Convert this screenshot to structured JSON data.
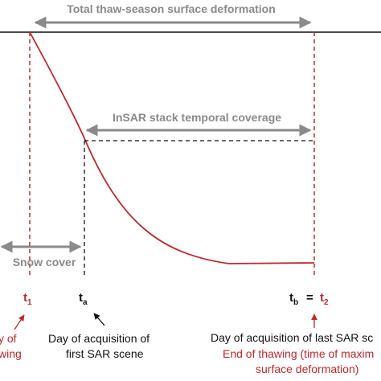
{
  "colors": {
    "accent_red": "#c0282d",
    "gray": "#8a8a8a",
    "black": "#111111"
  },
  "labels": {
    "total_deformation": "Total thaw-season surface deformation",
    "insar_coverage": "InSAR stack temporal coverage",
    "snow_cover": "Snow cover"
  },
  "times": {
    "t1_main": "t",
    "t1_sub": "1",
    "ta_main": "t",
    "ta_sub": "a",
    "tb_main": "t",
    "tb_sub": "b",
    "equals": "=",
    "t2_main": "t",
    "t2_sub": "2"
  },
  "notes": {
    "left_red_line1": "y of",
    "left_red_line2": "wing",
    "first_scene_line1": "Day of acquisition of",
    "first_scene_line2": "first SAR scene",
    "last_scene_line1": "Day of acquisition of last SAR sc",
    "end_thaw_line1": "End of thawing (time of maxim",
    "end_thaw_line2": "surface deformation)"
  }
}
